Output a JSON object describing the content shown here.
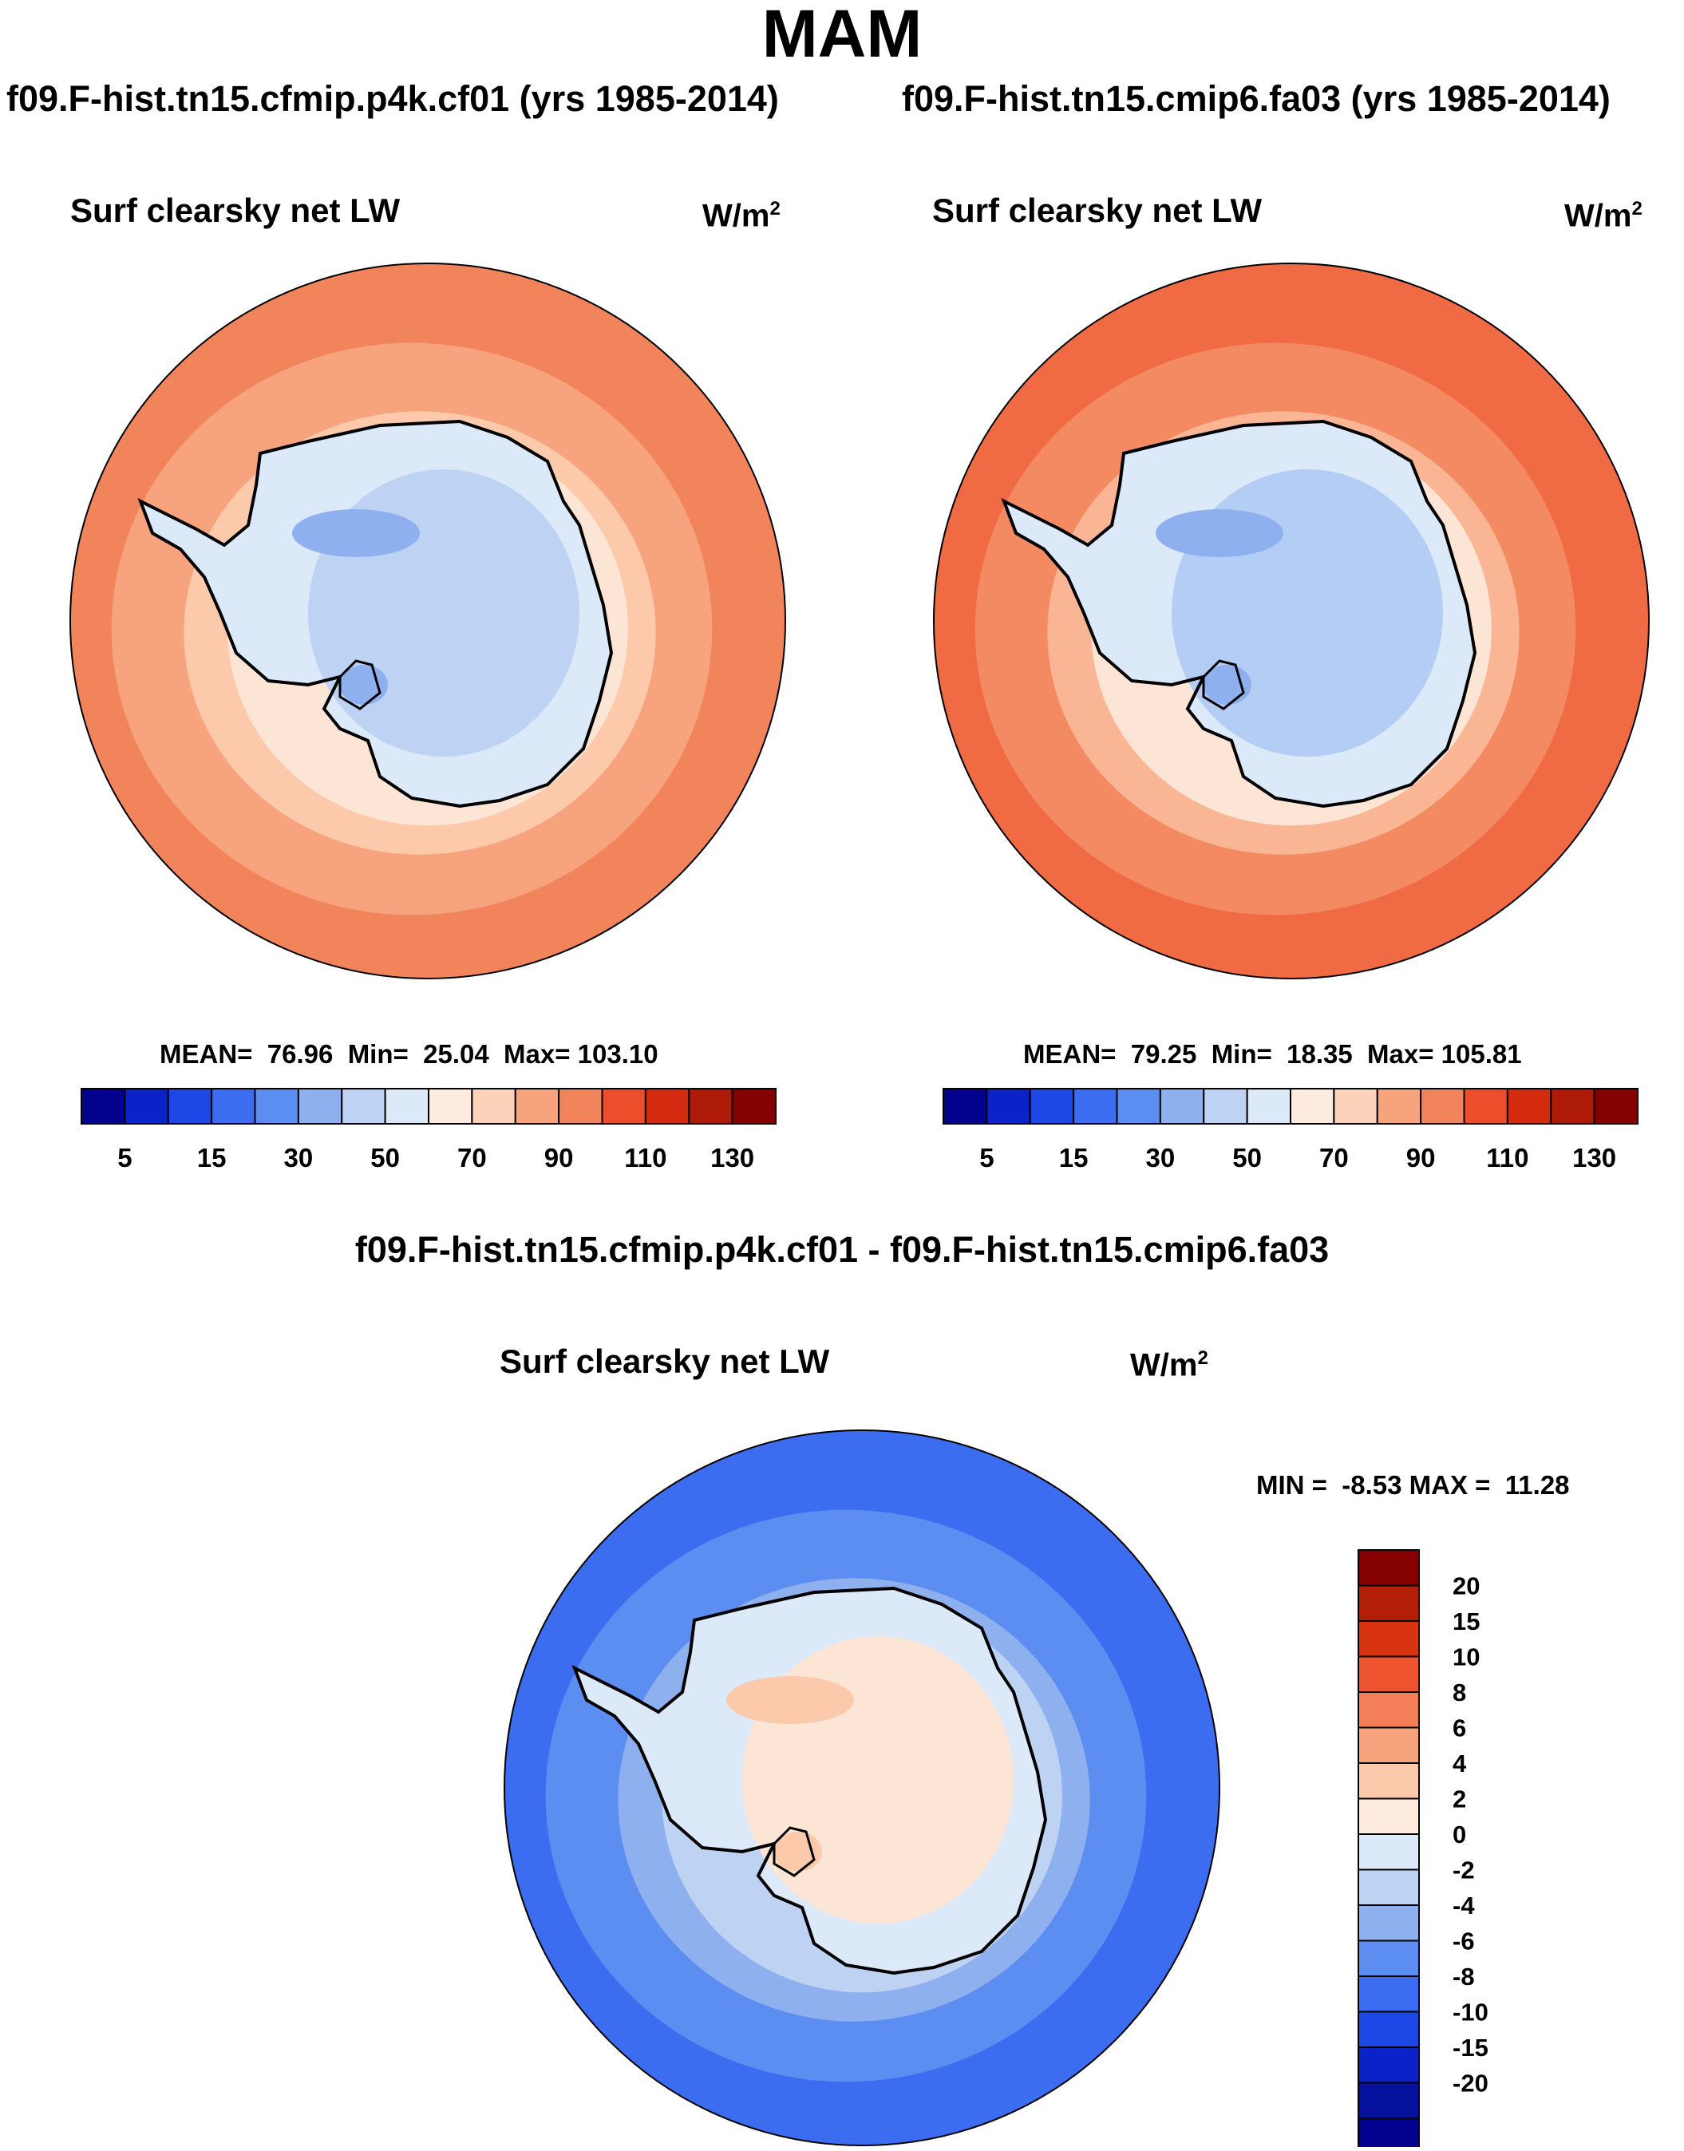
{
  "page": {
    "title": "MAM"
  },
  "panels": [
    {
      "case_title": "f09.F-hist.tn15.cfmip.p4k.cf01 (yrs 1985-2014)",
      "variable": "Surf clearsky net LW",
      "units_base": "W/m",
      "units_exp": "2",
      "stats": "MEAN=  76.96  Min=  25.04  Max= 103.10",
      "map_fills": {
        "ocean_outer": "#f1845a",
        "ocean_mid": "#f7a47e",
        "coast_band": "#fcc9ab",
        "shelf": "#fde5d6",
        "ice_edge": "#dce9f8",
        "plateau": "#bed3f3",
        "low": "#8fb0ef"
      }
    },
    {
      "case_title": "f09.F-hist.tn15.cmip6.fa03 (yrs 1985-2014)",
      "variable": "Surf clearsky net LW",
      "units_base": "W/m",
      "units_exp": "2",
      "stats": "MEAN=  79.25  Min=  18.35  Max= 105.81",
      "map_fills": {
        "ocean_outer": "#f06a43",
        "ocean_mid": "#f48a62",
        "coast_band": "#f9b594",
        "shelf": "#fde5d6",
        "ice_edge": "#dce9f8",
        "plateau": "#b4cdf4",
        "low": "#8fb0ef"
      }
    }
  ],
  "abs_colorbar": {
    "colors": [
      "#02028e",
      "#0a22c8",
      "#1e48e6",
      "#3c6df0",
      "#5c8ef2",
      "#8fb0ef",
      "#bed3f3",
      "#dce9f8",
      "#fdebe0",
      "#fcd2bb",
      "#f7a47e",
      "#f1845a",
      "#ec4e2c",
      "#d42a10",
      "#ad1b08",
      "#850000"
    ],
    "labels": [
      "5",
      "15",
      "30",
      "50",
      "70",
      "90",
      "110",
      "130"
    ]
  },
  "difference": {
    "title": "f09.F-hist.tn15.cfmip.p4k.cf01 - f09.F-hist.tn15.cmip6.fa03",
    "variable": "Surf clearsky net LW",
    "units_base": "W/m",
    "units_exp": "2",
    "stats": "MIN =  -8.53 MAX =  11.28",
    "map_fills": {
      "ocean_outer": "#3c6df0",
      "ocean_mid": "#5c8ef2",
      "coast_band": "#8fb0ef",
      "shelf": "#bed3f3",
      "ice_edge": "#dce9f8",
      "plateau": "#fde5d6",
      "low": "#fcc9ab"
    },
    "colorbar": {
      "colors": [
        "#850000",
        "#b21e07",
        "#d83412",
        "#ee5430",
        "#f47e58",
        "#f7a47e",
        "#fcc9ab",
        "#fdebe0",
        "#dce9f8",
        "#bed3f3",
        "#8fb0ef",
        "#5c8ef2",
        "#3c6df0",
        "#1e48e6",
        "#0a22c8",
        "#06129e",
        "#02028e"
      ],
      "labels": [
        "20",
        "15",
        "10",
        "8",
        "6",
        "4",
        "2",
        "0",
        "-2",
        "-4",
        "-6",
        "-8",
        "-10",
        "-15",
        "-20"
      ]
    }
  }
}
